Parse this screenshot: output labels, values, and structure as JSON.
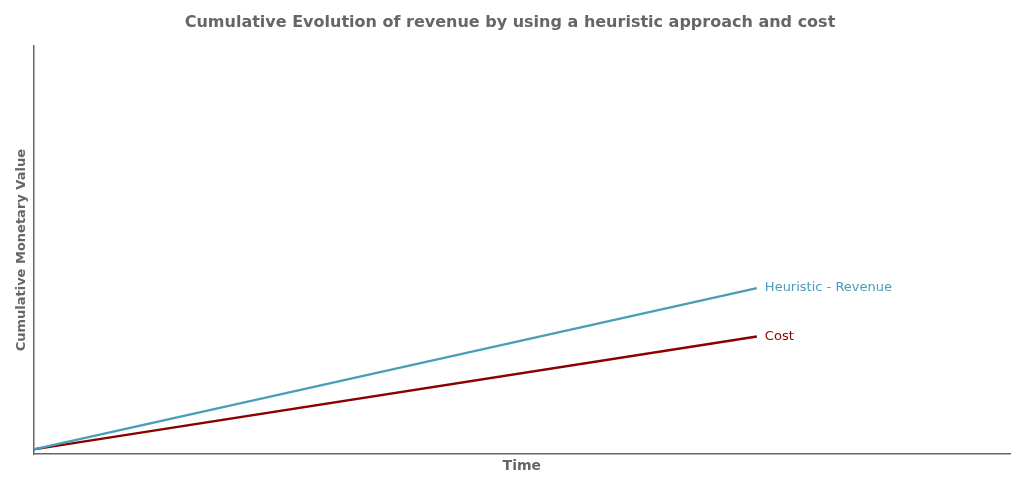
{
  "chart_data": {
    "type": "line",
    "title": "Cumulative Evolution of revenue by using a heuristic approach and cost",
    "x_label": "Time",
    "y_label": "Cumulative Monetary Value",
    "x": [
      0.0,
      1.0
    ],
    "series": [
      {
        "name": "Heuristic - Revenue",
        "color": "#4a9eb8",
        "values": [
          0.0,
          1.0
        ]
      },
      {
        "name": "Cost",
        "color": "#8b0000",
        "values": [
          0.0,
          0.7
        ]
      }
    ],
    "xlim": [
      0.0,
      1.35
    ],
    "ylim": [
      -0.03,
      2.5
    ],
    "tick_labels": false,
    "grid": false
  }
}
